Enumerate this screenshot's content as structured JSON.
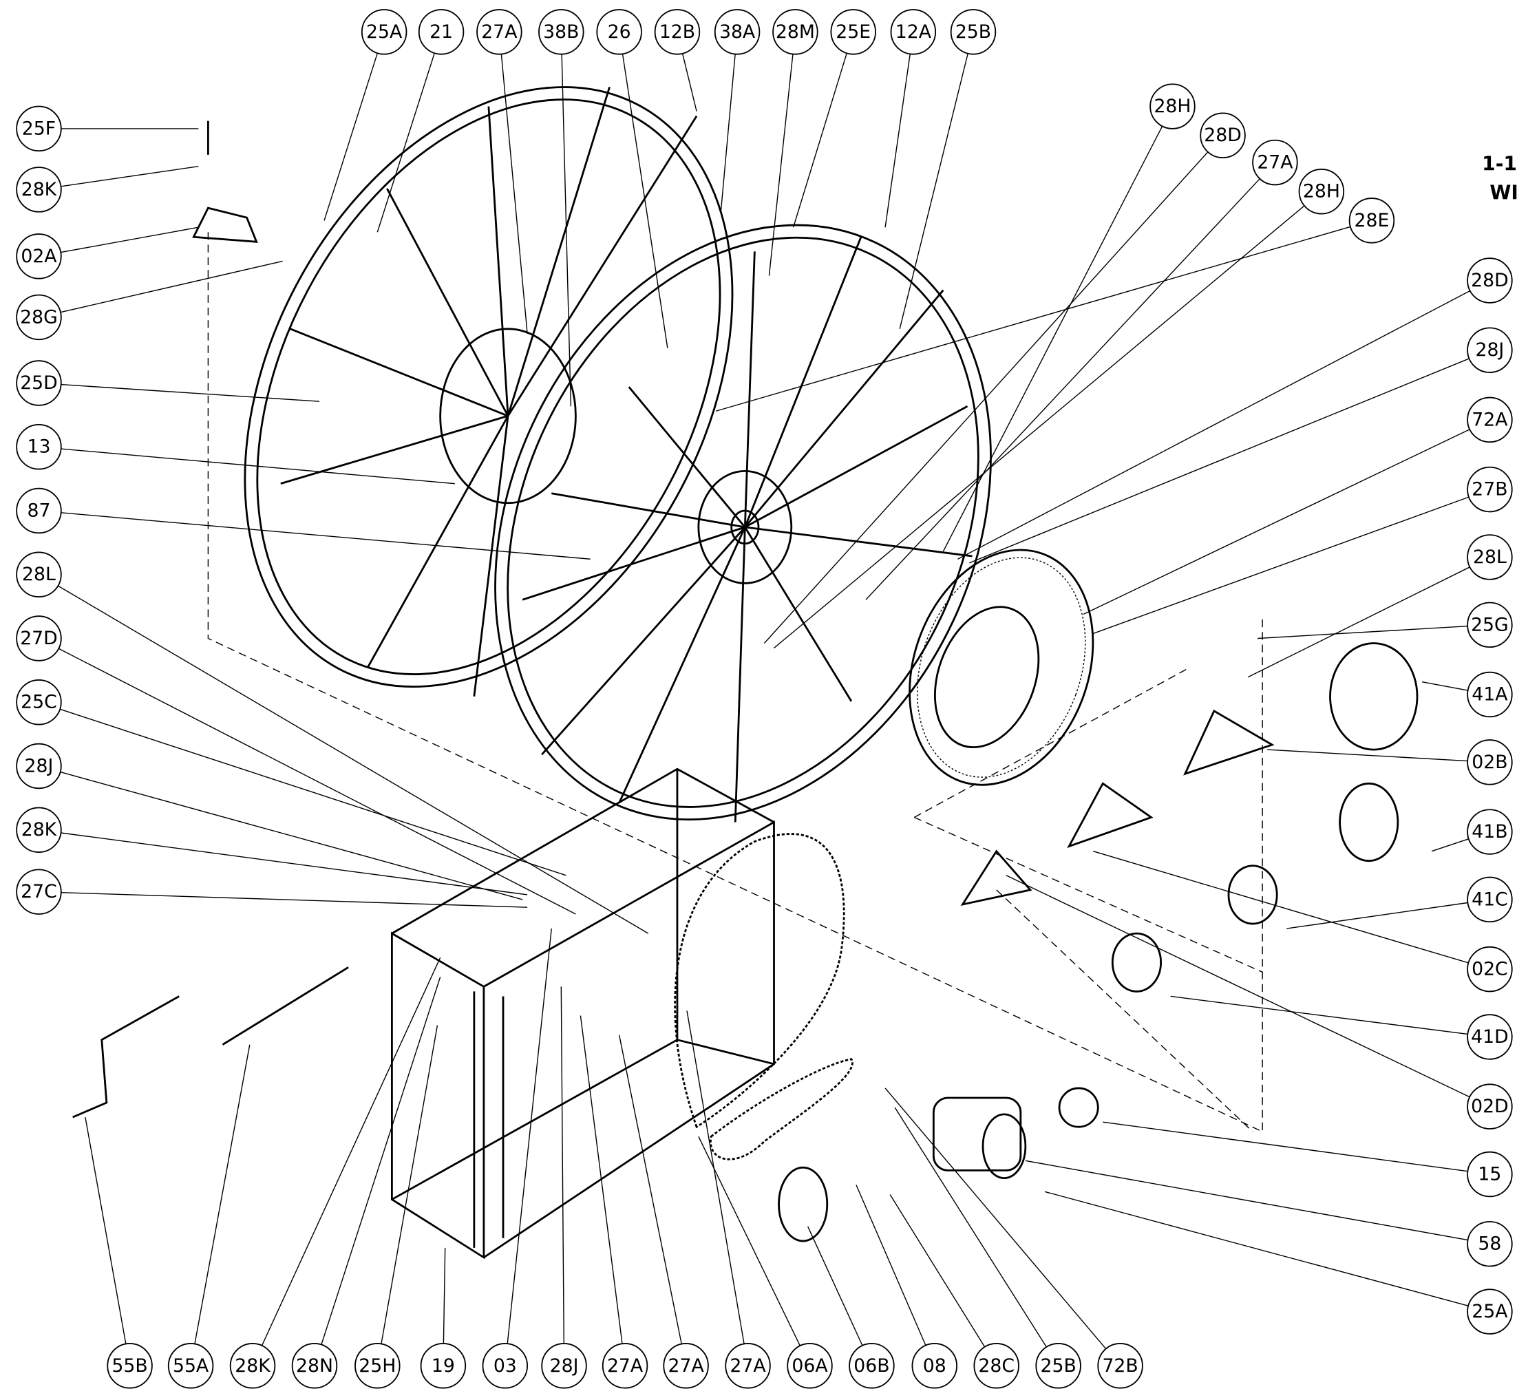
{
  "callouts": {
    "top": [
      "25A",
      "21",
      "27A",
      "38B",
      "26",
      "12B",
      "38A",
      "28M",
      "25E",
      "12A",
      "25B"
    ],
    "left": [
      "25F",
      "28K",
      "02A",
      "28G",
      "25D",
      "13",
      "87",
      "28L",
      "27D",
      "25C",
      "28J",
      "28K",
      "27C"
    ],
    "right_diagonal": [
      "28H",
      "28D",
      "27A",
      "28H",
      "28E"
    ],
    "right": [
      "28D",
      "28J",
      "72A",
      "27B",
      "28L",
      "25G",
      "41A",
      "02B",
      "41B",
      "41C",
      "02C",
      "41D",
      "02D",
      "15",
      "58",
      "25A"
    ],
    "bottom": [
      "55B",
      "55A",
      "28K",
      "28N",
      "25H",
      "19",
      "03",
      "28J",
      "27A",
      "27A",
      "27A",
      "06A",
      "06B",
      "08",
      "28C",
      "25B",
      "72B"
    ]
  },
  "title_fragment": [
    "1-1",
    "WI"
  ]
}
